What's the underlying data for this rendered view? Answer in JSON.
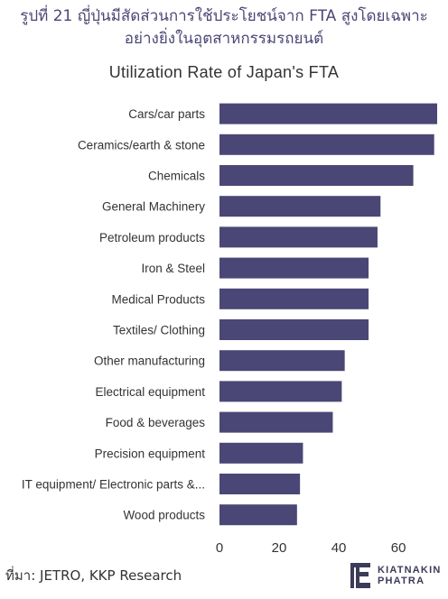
{
  "heading": {
    "line1": "รูปที่ 21 ญี่ปุ่นมีสัดส่วนการใช้ประโยชน์จาก FTA สูงโดยเฉพาะ",
    "line2": "อย่างยิ่งในอุตสาหกรรมรถยนต์"
  },
  "chart_data": {
    "type": "bar",
    "orientation": "horizontal",
    "title": "Utilization Rate of Japan's FTA",
    "xlabel": "",
    "ylabel": "",
    "categories": [
      "Cars/car parts",
      "Ceramics/earth & stone",
      "Chemicals",
      "General Machinery",
      "Petroleum products",
      "Iron & Steel",
      "Medical Products",
      "Textiles/ Clothing",
      "Other manufacturing",
      "Electrical equipment",
      "Food & beverages",
      "Precision equipment",
      "IT equipment/ Electronic parts &...",
      "Wood products"
    ],
    "values": [
      73,
      72,
      65,
      54,
      53,
      50,
      50,
      50,
      42,
      41,
      38,
      28,
      27,
      26
    ],
    "xlim": [
      0,
      73
    ],
    "xticks": [
      0,
      20,
      40,
      60
    ],
    "grid": false,
    "bar_color": "#4a4776"
  },
  "footer": {
    "source": "ที่มา: JETRO, KKP Research",
    "logo_line1": "KIATNAKIN",
    "logo_line2": "PHATRA"
  }
}
